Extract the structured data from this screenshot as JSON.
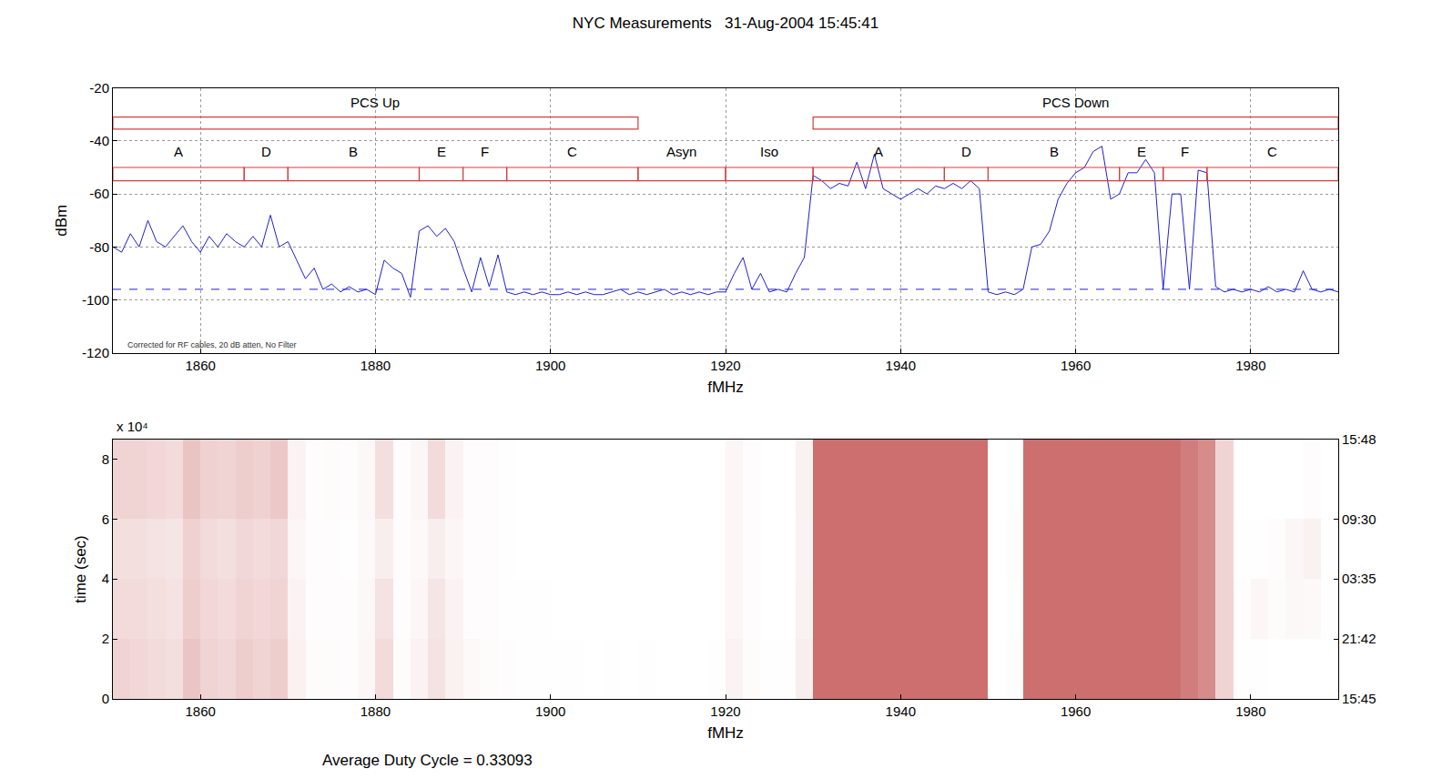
{
  "chart_data": [
    {
      "type": "line",
      "title": "NYC Measurements   31-Aug-2004 15:45:41",
      "x_label": "fMHz",
      "y_label": "dBm",
      "xlim": [
        1850,
        1990
      ],
      "xticks": [
        1860,
        1880,
        1900,
        1920,
        1940,
        1960,
        1980
      ],
      "ylim": [
        -120,
        -20
      ],
      "yticks": [
        -120,
        -100,
        -80,
        -60,
        -40,
        -20
      ],
      "grid": true,
      "x": [
        1850,
        1851,
        1852,
        1853,
        1854,
        1855,
        1856,
        1857,
        1858,
        1859,
        1860,
        1861,
        1862,
        1863,
        1864,
        1865,
        1866,
        1867,
        1868,
        1869,
        1870,
        1871,
        1872,
        1873,
        1874,
        1875,
        1876,
        1877,
        1878,
        1879,
        1880,
        1881,
        1882,
        1883,
        1884,
        1885,
        1886,
        1887,
        1888,
        1889,
        1890,
        1891,
        1892,
        1893,
        1894,
        1895,
        1896,
        1897,
        1898,
        1899,
        1900,
        1901,
        1902,
        1903,
        1904,
        1905,
        1906,
        1907,
        1908,
        1909,
        1910,
        1911,
        1912,
        1913,
        1914,
        1915,
        1916,
        1917,
        1918,
        1919,
        1920,
        1921,
        1922,
        1923,
        1924,
        1925,
        1926,
        1927,
        1928,
        1929,
        1930,
        1931,
        1932,
        1933,
        1934,
        1935,
        1936,
        1937,
        1938,
        1939,
        1940,
        1941,
        1942,
        1943,
        1944,
        1945,
        1946,
        1947,
        1948,
        1949,
        1950,
        1951,
        1952,
        1953,
        1954,
        1955,
        1956,
        1957,
        1958,
        1959,
        1960,
        1961,
        1962,
        1963,
        1964,
        1965,
        1966,
        1967,
        1968,
        1969,
        1970,
        1971,
        1972,
        1973,
        1974,
        1975,
        1976,
        1977,
        1978,
        1979,
        1980,
        1981,
        1982,
        1983,
        1984,
        1985,
        1986,
        1987,
        1988,
        1989,
        1990
      ],
      "series": [
        {
          "color": "#1f1fd0",
          "values": [
            -80,
            -82,
            -75,
            -80,
            -70,
            -78,
            -80,
            -76,
            -72,
            -78,
            -82,
            -76,
            -80,
            -75,
            -78,
            -80,
            -76,
            -80,
            -68,
            -80,
            -78,
            -85,
            -92,
            -88,
            -96,
            -94,
            -97,
            -95,
            -97,
            -96,
            -98,
            -85,
            -88,
            -90,
            -99,
            -74,
            -72,
            -76,
            -73,
            -78,
            -88,
            -97,
            -84,
            -95,
            -83,
            -97,
            -98,
            -97,
            -98,
            -97,
            -98,
            -98,
            -97,
            -98,
            -97,
            -98,
            -98,
            -97,
            -96,
            -98,
            -97,
            -98,
            -97,
            -96,
            -98,
            -97,
            -98,
            -97,
            -98,
            -97,
            -97,
            -90,
            -84,
            -96,
            -90,
            -97,
            -96,
            -97,
            -90,
            -84,
            -53,
            -55,
            -58,
            -56,
            -57,
            -48,
            -58,
            -45,
            -58,
            -60,
            -62,
            -60,
            -58,
            -60,
            -57,
            -58,
            -56,
            -58,
            -55,
            -58,
            -97,
            -98,
            -97,
            -98,
            -96,
            -80,
            -79,
            -74,
            -62,
            -56,
            -52,
            -50,
            -44,
            -42,
            -62,
            -60,
            -52,
            -52,
            -47,
            -52,
            -96,
            -60,
            -60,
            -96,
            -51,
            -52,
            -95,
            -97,
            -96,
            -97,
            -96,
            -97,
            -95,
            -97,
            -96,
            -97,
            -89,
            -96,
            -97,
            -96,
            -97
          ]
        },
        {
          "color": "#1f1fd0",
          "line_style": "dashed",
          "x": [
            1850,
            1990
          ],
          "values": [
            -96,
            -96
          ]
        }
      ],
      "band_rows": [
        [
          {
            "label": "PCS Up",
            "start": 1850,
            "end": 1910
          },
          {
            "label": "PCS Down",
            "start": 1930,
            "end": 1990
          }
        ],
        [
          {
            "label": "A",
            "start": 1850,
            "end": 1865
          },
          {
            "label": "D",
            "start": 1865,
            "end": 1870
          },
          {
            "label": "B",
            "start": 1870,
            "end": 1885
          },
          {
            "label": "E",
            "start": 1885,
            "end": 1890
          },
          {
            "label": "F",
            "start": 1890,
            "end": 1895
          },
          {
            "label": "C",
            "start": 1895,
            "end": 1910
          },
          {
            "label": "Asyn",
            "start": 1910,
            "end": 1920
          },
          {
            "label": "Iso",
            "start": 1920,
            "end": 1930
          },
          {
            "label": "A",
            "start": 1930,
            "end": 1945
          },
          {
            "label": "D",
            "start": 1945,
            "end": 1950
          },
          {
            "label": "B",
            "start": 1950,
            "end": 1965
          },
          {
            "label": "E",
            "start": 1965,
            "end": 1970
          },
          {
            "label": "F",
            "start": 1970,
            "end": 1975
          },
          {
            "label": "C",
            "start": 1975,
            "end": 1990
          }
        ]
      ],
      "note": "Corrected for RF cables, 20 dB atten, No Filter"
    },
    {
      "type": "heatmap",
      "x_label": "fMHz",
      "y_label": "time (sec)",
      "axis_note": "x 10⁴",
      "footnote": "Average Duty Cycle = 0.33093",
      "xlim": [
        1850,
        1990
      ],
      "xticks": [
        1860,
        1880,
        1900,
        1920,
        1940,
        1960,
        1980
      ],
      "ylim": [
        0,
        8.65
      ],
      "yticks": [
        0,
        2,
        4,
        6,
        8
      ],
      "y2lim": [
        0,
        8.65
      ],
      "y2ticks": [
        {
          "value": 0,
          "label": "15:45"
        },
        {
          "value": 2,
          "label": "21:42"
        },
        {
          "value": 4,
          "label": "03:35"
        },
        {
          "value": 6,
          "label": "09:30"
        },
        {
          "value": 8.65,
          "label": "15:48"
        }
      ],
      "grid": true,
      "color": "#cd6f6f",
      "zlim": [
        0,
        1
      ],
      "x": [
        1850,
        1852,
        1854,
        1856,
        1858,
        1860,
        1862,
        1864,
        1866,
        1868,
        1870,
        1872,
        1874,
        1876,
        1878,
        1880,
        1882,
        1884,
        1886,
        1888,
        1890,
        1892,
        1894,
        1896,
        1898,
        1900,
        1902,
        1904,
        1906,
        1908,
        1910,
        1912,
        1914,
        1916,
        1918,
        1920,
        1922,
        1924,
        1926,
        1928,
        1930,
        1932,
        1934,
        1936,
        1938,
        1940,
        1942,
        1944,
        1946,
        1948,
        1950,
        1952,
        1954,
        1956,
        1958,
        1960,
        1962,
        1964,
        1966,
        1968,
        1970,
        1972,
        1974,
        1976,
        1978,
        1980,
        1982,
        1984,
        1986,
        1988,
        1990
      ],
      "y": [
        0,
        2,
        4,
        6,
        8.65
      ],
      "cells": [
        [
          0.3,
          0.28,
          0.25,
          0.22,
          0.4,
          0.3,
          0.28,
          0.35,
          0.3,
          0.35,
          0.1,
          0.03,
          0.03,
          0.02,
          0.06,
          0.25,
          0.03,
          0.08,
          0.2,
          0.1,
          0.04,
          0.03,
          0.02,
          0.01,
          0.01,
          0.01,
          0.01,
          0,
          0.01,
          0,
          0.01,
          0,
          0,
          0,
          0.01,
          0.08,
          0.03,
          0.01,
          0.01,
          0.12,
          1,
          1,
          1,
          1,
          1,
          1,
          1,
          1,
          1,
          1,
          0,
          0.02,
          1,
          1,
          1,
          1,
          1,
          1,
          1,
          1,
          1,
          0.9,
          0.8,
          0.3,
          0.01,
          0.01,
          0,
          0,
          0,
          0
        ],
        [
          0.25,
          0.25,
          0.22,
          0.2,
          0.35,
          0.28,
          0.25,
          0.3,
          0.28,
          0.3,
          0.08,
          0.02,
          0.02,
          0.02,
          0.05,
          0.2,
          0.02,
          0.06,
          0.18,
          0.08,
          0.02,
          0.02,
          0.01,
          0.01,
          0.01,
          0,
          0,
          0,
          0,
          0,
          0,
          0,
          0,
          0,
          0,
          0.06,
          0.02,
          0,
          0,
          0.1,
          1,
          1,
          1,
          1,
          1,
          1,
          1,
          1,
          1,
          1,
          0,
          0.01,
          1,
          1,
          1,
          1,
          1,
          1,
          1,
          1,
          1,
          0.9,
          0.8,
          0.3,
          0.02,
          0.06,
          0.03,
          0.05,
          0.04,
          0.01
        ],
        [
          0.22,
          0.22,
          0.2,
          0.18,
          0.32,
          0.25,
          0.22,
          0.28,
          0.25,
          0.28,
          0.06,
          0.02,
          0.02,
          0.01,
          0.04,
          0.12,
          0.02,
          0.04,
          0.12,
          0.06,
          0.02,
          0.02,
          0.01,
          0,
          0,
          0,
          0,
          0,
          0,
          0,
          0,
          0,
          0,
          0,
          0,
          0.06,
          0.02,
          0,
          0,
          0.08,
          1,
          1,
          1,
          1,
          1,
          1,
          1,
          1,
          1,
          1,
          0,
          0.02,
          1,
          1,
          1,
          1,
          1,
          1,
          1,
          1,
          1,
          0.9,
          0.8,
          0.3,
          0.01,
          0.01,
          0.02,
          0.06,
          0.1,
          0.01
        ],
        [
          0.3,
          0.3,
          0.28,
          0.25,
          0.42,
          0.32,
          0.3,
          0.35,
          0.32,
          0.38,
          0.08,
          0.02,
          0.03,
          0.02,
          0.05,
          0.22,
          0.02,
          0.06,
          0.25,
          0.08,
          0.02,
          0.02,
          0.01,
          0,
          0,
          0,
          0,
          0,
          0,
          0,
          0,
          0,
          0,
          0,
          0,
          0.06,
          0.02,
          0,
          0,
          0.1,
          1,
          1,
          1,
          1,
          1,
          1,
          1,
          1,
          1,
          1,
          0,
          0.01,
          1,
          1,
          1,
          1,
          1,
          1,
          1,
          1,
          1,
          0.9,
          0.8,
          0.3,
          0,
          0,
          0,
          0,
          0.02,
          0
        ]
      ]
    }
  ]
}
